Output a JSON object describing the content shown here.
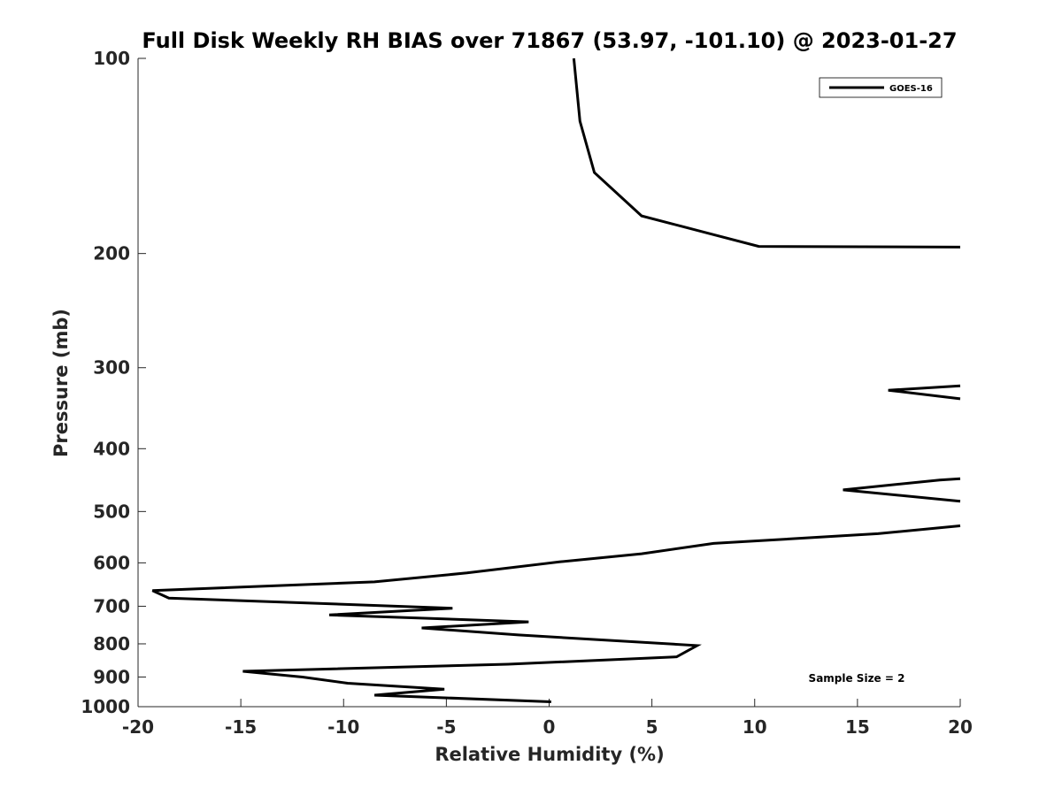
{
  "chart_data": {
    "type": "line",
    "title": "Full Disk Weekly RH BIAS over 71867 (53.97, -101.10) @ 2023-01-27",
    "xlabel": "Relative Humidity (%)",
    "ylabel": "Pressure (mb)",
    "xlim": [
      -20,
      20
    ],
    "ylim": [
      100,
      1000
    ],
    "y_scale": "log",
    "y_reversed": true,
    "x_ticks": [
      "-20",
      "-15",
      "-10",
      "-5",
      "0",
      "5",
      "10",
      "15",
      "20"
    ],
    "y_ticks": [
      "100",
      "200",
      "300",
      "400",
      "500",
      "600",
      "700",
      "800",
      "900",
      "1000"
    ],
    "grid": false,
    "legend_position": "top-right",
    "annotation": "Sample Size = 2",
    "series": [
      {
        "name": "GOES-16",
        "color": "#000000",
        "segments": [
          [
            {
              "x": 1.2,
              "p": 100
            },
            {
              "x": 1.5,
              "p": 125
            },
            {
              "x": 2.2,
              "p": 150
            },
            {
              "x": 4.5,
              "p": 175
            },
            {
              "x": 8.0,
              "p": 187
            },
            {
              "x": 10.2,
              "p": 195
            },
            {
              "x": 20.0,
              "p": 195.5
            }
          ],
          [
            {
              "x": 20.0,
              "p": 320
            },
            {
              "x": 16.5,
              "p": 325
            },
            {
              "x": 20.0,
              "p": 335
            }
          ],
          [
            {
              "x": 20.0,
              "p": 445
            },
            {
              "x": 19.0,
              "p": 447
            },
            {
              "x": 14.3,
              "p": 463
            },
            {
              "x": 20.0,
              "p": 482
            }
          ],
          [
            {
              "x": 20.0,
              "p": 526
            },
            {
              "x": 16.0,
              "p": 541
            },
            {
              "x": 8.0,
              "p": 560
            },
            {
              "x": 4.5,
              "p": 581
            },
            {
              "x": 0.5,
              "p": 598
            },
            {
              "x": -4.0,
              "p": 622
            },
            {
              "x": -8.5,
              "p": 642
            },
            {
              "x": -19.3,
              "p": 662
            },
            {
              "x": -18.5,
              "p": 680
            },
            {
              "x": -4.7,
              "p": 705
            },
            {
              "x": -10.7,
              "p": 722
            },
            {
              "x": -1.0,
              "p": 740
            },
            {
              "x": -6.2,
              "p": 756
            },
            {
              "x": -1.5,
              "p": 775
            },
            {
              "x": 7.2,
              "p": 805
            },
            {
              "x": 6.2,
              "p": 838
            },
            {
              "x": -2.0,
              "p": 860
            },
            {
              "x": -14.9,
              "p": 882
            },
            {
              "x": -12.0,
              "p": 900
            },
            {
              "x": -9.8,
              "p": 920
            },
            {
              "x": -5.1,
              "p": 940
            },
            {
              "x": -8.5,
              "p": 960
            },
            {
              "x": 0.1,
              "p": 983
            }
          ]
        ]
      }
    ]
  }
}
